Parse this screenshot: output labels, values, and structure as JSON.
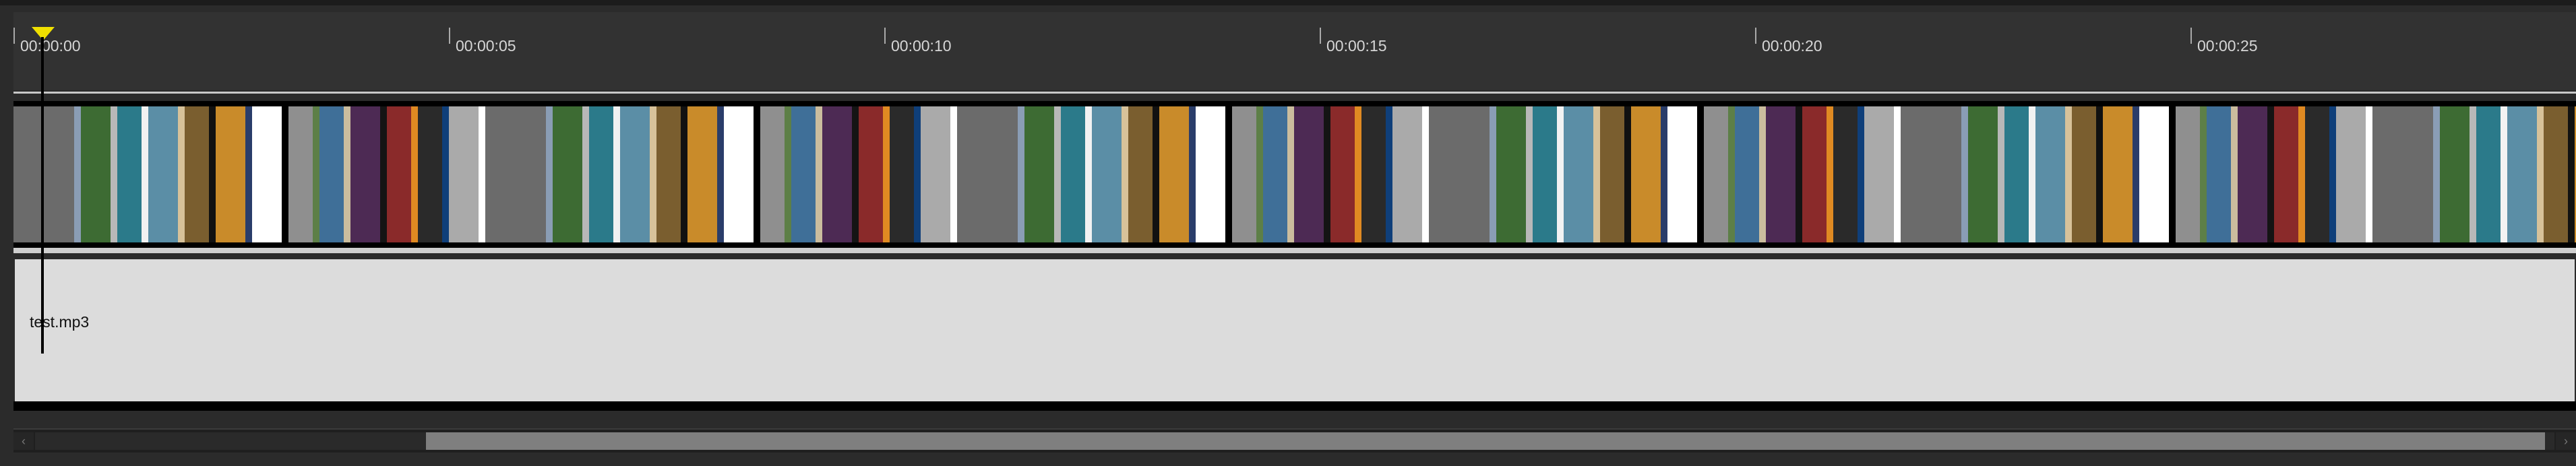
{
  "ruler": {
    "ticks": [
      "00:00:00",
      "00:00:05",
      "00:00:10",
      "00:00:15",
      "00:00:20",
      "00:00:25"
    ]
  },
  "video_track": {
    "thumbnail_sequence_colors": [
      "#6b6b6b",
      "#8a9db5",
      "#3d6b33",
      "#b8b8b8",
      "#2b7a8a",
      "#f2f2f2",
      "#5b8ea6",
      "#d7c29a",
      "#7a5e2f",
      "#111111",
      "#c98b2a",
      "#2a3d6a",
      "#ffffff",
      "#000000",
      "#8f8f8f",
      "#5d7f47",
      "#3f6f98",
      "#cbbd9e",
      "#4d2a54",
      "#141414",
      "#8a2a2a",
      "#e08a22",
      "#2a2a2a",
      "#0f3f7a",
      "#aaaaaa",
      "#ffffff"
    ]
  },
  "audio_track": {
    "clip_name": "test.mp3"
  },
  "playhead": {
    "time": "00:00:00",
    "color": "#f0e000"
  },
  "scrollbar": {
    "left_arrow": "‹",
    "right_arrow": "›",
    "scroll_position": 0.15
  }
}
